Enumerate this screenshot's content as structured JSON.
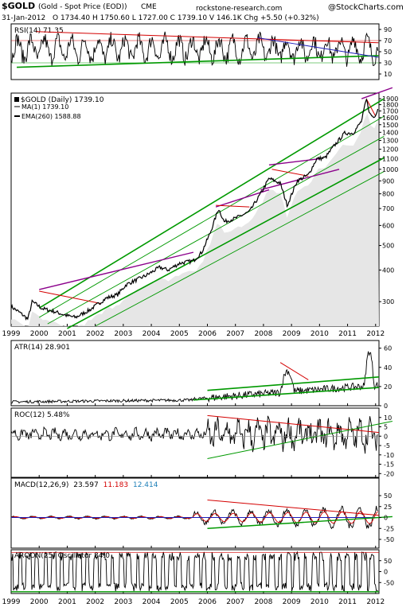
{
  "header": {
    "symbol": "$GOLD",
    "name": "(Gold - Spot Price (EOD))",
    "exchange": "CME",
    "brand": "@StockCharts.com",
    "date": "31-Jan-2012",
    "quote": "O 1734.40  H 1750.60  L 1727.00  C 1739.10  V 146.1K  Chg +5.50 (+0.32%)",
    "watermark": "rockstone-research.com"
  },
  "colors": {
    "price": "#000000",
    "up": "#000000",
    "green_trend": "#009900",
    "red_trend": "#d40000",
    "purple_trend": "#8b008b",
    "blue_trend": "#1d1db8",
    "grey_fill": "#e6e6e6",
    "macd_signal": "#d40000",
    "macd_hist": "#1d1db8"
  },
  "chart_data": [
    {
      "type": "line",
      "panel": "rsi",
      "legend": "RSI(14) 71.35",
      "y_ticks": [
        "90",
        "70",
        "50",
        "30",
        "10"
      ],
      "ylim": [
        0,
        100
      ],
      "last": 71.35
    },
    {
      "type": "line",
      "panel": "price",
      "scale": "log",
      "legend": [
        "$GOLD (Daily) 1739.10",
        "MA(1) 1739.10",
        "EMA(260) 1588.88"
      ],
      "y_ticks": [
        "1900",
        "1800",
        "1700",
        "1600",
        "1500",
        "1400",
        "1300",
        "1200",
        "1100",
        "1000",
        "900",
        "800",
        "700",
        "600",
        "500",
        "400",
        "300"
      ],
      "ylim": [
        240,
        2000
      ],
      "x_ticks": [
        "1999",
        "2000",
        "2001",
        "2002",
        "2003",
        "2004",
        "2005",
        "2006",
        "2007",
        "2008",
        "2009",
        "2010",
        "2011",
        "2012"
      ],
      "x": [
        1999.0,
        1999.3,
        1999.6,
        1999.75,
        1999.95,
        2000.1,
        2000.5,
        2001.0,
        2001.3,
        2001.8,
        2002.4,
        2002.8,
        2003.1,
        2003.8,
        2004.3,
        2004.6,
        2005.0,
        2005.5,
        2005.8,
        2006.1,
        2006.4,
        2006.6,
        2007.0,
        2007.5,
        2007.9,
        2008.2,
        2008.6,
        2008.85,
        2009.2,
        2009.6,
        2009.9,
        2010.2,
        2010.5,
        2010.9,
        2011.2,
        2011.5,
        2011.67,
        2011.8,
        2011.95,
        2012.08
      ],
      "values": [
        287,
        272,
        256,
        300,
        290,
        282,
        275,
        264,
        260,
        278,
        310,
        320,
        350,
        380,
        410,
        400,
        425,
        435,
        470,
        560,
        700,
        620,
        640,
        680,
        800,
        920,
        880,
        720,
        900,
        950,
        1100,
        1110,
        1230,
        1390,
        1390,
        1550,
        1890,
        1650,
        1600,
        1739
      ],
      "last": 1739.1,
      "ema260": 1588.88
    },
    {
      "type": "line",
      "panel": "atr",
      "legend": "ATR(14) 28.901",
      "y_ticks": [
        "60",
        "40",
        "20",
        "0"
      ],
      "ylim": [
        0,
        68
      ],
      "last": 28.901
    },
    {
      "type": "line",
      "panel": "roc",
      "legend": "ROC(12) 5.48%",
      "y_ticks": [
        "10",
        "5",
        "0",
        "-5",
        "-10",
        "-15",
        "-20"
      ],
      "ylim": [
        -22,
        15
      ],
      "last": 5.48
    },
    {
      "type": "line",
      "panel": "macd",
      "legend": {
        "label": "MACD(12,26,9)",
        "macd": "23.597",
        "signal": "11.183",
        "hist": "12.414"
      },
      "y_ticks": [
        "50",
        "25",
        "0",
        "-25",
        "-50"
      ],
      "ylim": [
        -70,
        90
      ]
    },
    {
      "type": "line",
      "panel": "aroon",
      "legend": "AROON(25) Oscillator 84.0",
      "y_ticks": [
        "50",
        "0",
        "-50"
      ],
      "ylim": [
        -100,
        100
      ],
      "last": 84.0
    }
  ]
}
